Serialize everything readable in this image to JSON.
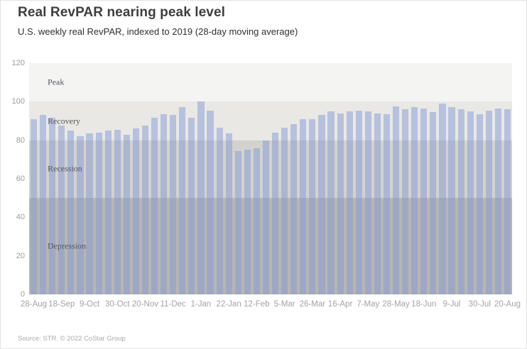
{
  "header": {
    "title": "Real RevPAR nearing peak level",
    "subtitle": "U.S. weekly real RevPAR, indexed to 2019 (28-day moving average)"
  },
  "footer": {
    "source": "Source: STR. © 2022 CoStar Group"
  },
  "chart_data": {
    "type": "bar",
    "title": "Real RevPAR nearing peak level",
    "subtitle": "U.S. weekly real RevPAR, indexed to 2019 (28-day moving average)",
    "xlabel": "",
    "ylabel": "",
    "ylim": [
      0,
      120
    ],
    "y_ticks": [
      0,
      20,
      40,
      60,
      80,
      100,
      120
    ],
    "tick_every": 3,
    "tick_labels": [
      "28-Aug",
      "18-Sep",
      "9-Oct",
      "30-Oct",
      "20-Nov",
      "11-Dec",
      "1-Jan",
      "22-Jan",
      "12-Feb",
      "5-Mar",
      "26-Mar",
      "16-Apr",
      "7-May",
      "28-May",
      "18-Jun",
      "9-Jul",
      "30-Jul",
      "20-Aug"
    ],
    "values": [
      91,
      93,
      91.5,
      87.5,
      85,
      82,
      83.5,
      84,
      85,
      85.5,
      83,
      86,
      87.5,
      91.5,
      93.5,
      93,
      97,
      91.5,
      100,
      95.5,
      86.5,
      83.5,
      74.5,
      75,
      76,
      80,
      84,
      86.5,
      88.5,
      91,
      91,
      93,
      95,
      94,
      95,
      95.5,
      95,
      94,
      93.5,
      97.5,
      96,
      97,
      96.5,
      94.5,
      99,
      97,
      96,
      95,
      93.5,
      95.5,
      96.5,
      96
    ],
    "bar_color": "rgba(133,154,215,0.5)",
    "grid": false,
    "legend": "none",
    "bands": [
      {
        "label": "Peak",
        "from": 100,
        "to": 120,
        "color": "#f4f4f2"
      },
      {
        "label": "Recovery",
        "from": 80,
        "to": 100,
        "color": "#e9e8e5"
      },
      {
        "label": "Recession",
        "from": 50,
        "to": 80,
        "color": "#d3d2ce"
      },
      {
        "label": "Depression",
        "from": 0,
        "to": 50,
        "color": "#b7b6b2"
      }
    ]
  }
}
